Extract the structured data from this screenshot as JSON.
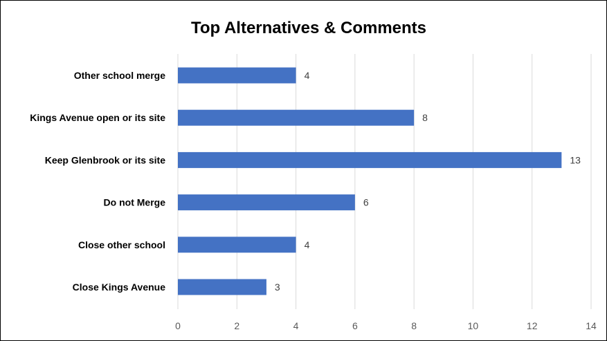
{
  "chart_data": {
    "type": "bar",
    "orientation": "horizontal",
    "title": "Top Alternatives & Comments",
    "categories": [
      "Other school merge",
      "Kings Avenue open or its site",
      "Keep Glenbrook or its site",
      "Do not Merge",
      "Close other school",
      "Close Kings Avenue"
    ],
    "values": [
      4,
      8,
      13,
      6,
      4,
      3
    ],
    "xlim": [
      0,
      14
    ],
    "xticks": [
      "0",
      "2",
      "4",
      "6",
      "8",
      "10",
      "12",
      "14"
    ],
    "grid": true,
    "legend": "none",
    "bar_color": "#4472C4",
    "grid_color": "#D9D9D9"
  }
}
